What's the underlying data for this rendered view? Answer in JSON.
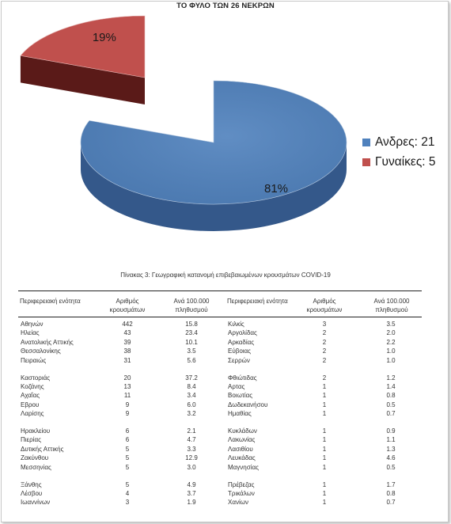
{
  "chart_data": {
    "type": "pie",
    "title": "ΤΟ ΦΥΛΟ ΤΩΝ 26 ΝΕΚΡΩΝ",
    "slices": [
      {
        "label": "Ανδρες: 21",
        "value": 21,
        "percent_label": "81%",
        "color": "#4f81bd",
        "side_color": "#34588a",
        "exploded": false
      },
      {
        "label": "Γυναίκες: 5",
        "value": 5,
        "percent_label": "19%",
        "color": "#c0504d",
        "side_color": "#5a1a18",
        "exploded": true
      }
    ],
    "legend_position": "right",
    "style": "3d"
  },
  "table": {
    "caption": "Πίνακας 3: Γεωγραφική κατανομή επιβεβαιωμένων κρουσμάτων COVID-19",
    "headers": {
      "region": "Περιφερειακή ενότητα",
      "cases": "Αριθμός κρουσμάτων",
      "per100k": "Ανά 100.000 πληθυσμού"
    },
    "left_groups": [
      [
        [
          "Αθηνών",
          "442",
          "15.8"
        ],
        [
          "Ηλείας",
          "43",
          "23.4"
        ],
        [
          "Ανατολικής Αττικής",
          "39",
          "10.1"
        ],
        [
          "Θεσσαλονίκης",
          "38",
          "3.5"
        ],
        [
          "Πειραιώς",
          "31",
          "5.6"
        ]
      ],
      [
        [
          "Καστοριάς",
          "20",
          "37.2"
        ],
        [
          "Κοζάνης",
          "13",
          "8.4"
        ],
        [
          "Αχαΐας",
          "11",
          "3.4"
        ],
        [
          "Εβρου",
          "9",
          "6.0"
        ],
        [
          "Λαρίσης",
          "9",
          "3.2"
        ]
      ],
      [
        [
          "Ηρακλείου",
          "6",
          "2.1"
        ],
        [
          "Πιερίας",
          "6",
          "4.7"
        ],
        [
          "Δυτικής Αττικής",
          "5",
          "3.3"
        ],
        [
          "Ζακύνθου",
          "5",
          "12.9"
        ],
        [
          "Μεσσηνίας",
          "5",
          "3.0"
        ]
      ],
      [
        [
          "Ξάνθης",
          "5",
          "4.9"
        ],
        [
          "Λέσβου",
          "4",
          "3.7"
        ],
        [
          "Ιωαννίνων",
          "3",
          "1.9"
        ]
      ]
    ],
    "right_groups": [
      [
        [
          "Κιλκίς",
          "3",
          "3.5"
        ],
        [
          "Αργολίδας",
          "2",
          "2.0"
        ],
        [
          "Αρκαδίας",
          "2",
          "2.2"
        ],
        [
          "Εύβοιας",
          "2",
          "1.0"
        ],
        [
          "Σερρών",
          "2",
          "1.0"
        ]
      ],
      [
        [
          "Φθιώτιδας",
          "2",
          "1.2"
        ],
        [
          "Αρτας",
          "1",
          "1.4"
        ],
        [
          "Βοιωτίας",
          "1",
          "0.8"
        ],
        [
          "Δωδεκανήσου",
          "1",
          "0.5"
        ],
        [
          "Ημαθίας",
          "1",
          "0.7"
        ]
      ],
      [
        [
          "Κυκλάδων",
          "1",
          "0.9"
        ],
        [
          "Λακωνίας",
          "1",
          "1.1"
        ],
        [
          "Λασιθίου",
          "1",
          "1.3"
        ],
        [
          "Λευκάδας",
          "1",
          "4.6"
        ],
        [
          "Μαγνησίας",
          "1",
          "0.5"
        ]
      ],
      [
        [
          "Πρέβεζας",
          "1",
          "1.7"
        ],
        [
          "Τρικάλων",
          "1",
          "0.8"
        ],
        [
          "Χανίων",
          "1",
          "0.7"
        ]
      ]
    ]
  }
}
